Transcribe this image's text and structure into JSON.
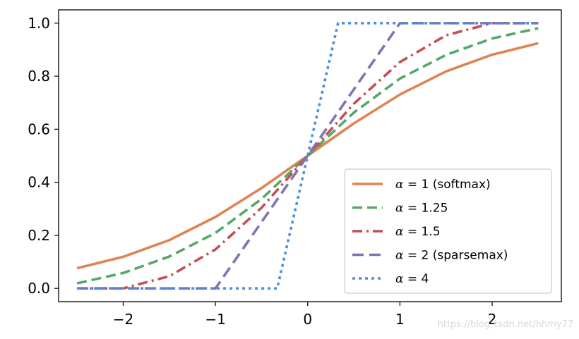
{
  "chart_data": {
    "type": "line",
    "title": "",
    "xlabel": "",
    "ylabel": "",
    "xlim": [
      -2.7,
      2.75
    ],
    "ylim": [
      -0.05,
      1.05
    ],
    "xticks": [
      -2,
      -1,
      0,
      1,
      2
    ],
    "xtick_labels": [
      "−2",
      "−1",
      "0",
      "1",
      "2"
    ],
    "yticks": [
      0.0,
      0.2,
      0.4,
      0.6,
      0.8,
      1.0
    ],
    "ytick_labels": [
      "0.0",
      "0.2",
      "0.4",
      "0.6",
      "0.8",
      "1.0"
    ],
    "grid": false,
    "legend_position": "lower-right",
    "x": [
      -2.5,
      -2.0,
      -1.5,
      -1.0,
      -0.5,
      0.0,
      0.5,
      1.0,
      1.5,
      2.0,
      2.5
    ],
    "series": [
      {
        "name": "α = 1 (softmax)",
        "alpha_label": "α",
        "rest_label": " = 1 (softmax)",
        "color": "#dd8452",
        "dash": "",
        "linecap": "butt",
        "values": [
          0.076,
          0.119,
          0.182,
          0.269,
          0.378,
          0.5,
          0.622,
          0.731,
          0.818,
          0.881,
          0.924
        ]
      },
      {
        "name": "α = 1.25",
        "alpha_label": "α",
        "rest_label": " = 1.25",
        "color": "#55a868",
        "dash": "14,7",
        "linecap": "butt",
        "values": [
          0.019,
          0.058,
          0.12,
          0.209,
          0.337,
          0.5,
          0.663,
          0.791,
          0.88,
          0.942,
          0.981
        ]
      },
      {
        "name": "α = 1.5",
        "alpha_label": "α",
        "rest_label": " = 1.5",
        "color": "#c44e52",
        "dash": "14,6,3,6",
        "linecap": "butt",
        "values": [
          0.0,
          0.0,
          0.046,
          0.147,
          0.304,
          0.5,
          0.696,
          0.853,
          0.954,
          1.0,
          1.0
        ]
      },
      {
        "name": "α = 2 (sparsemax)",
        "alpha_label": "α",
        "rest_label": " = 2 (sparsemax)",
        "color": "#8172b3",
        "dash": "16,8",
        "linecap": "butt",
        "values": [
          0.0,
          0.0,
          0.0,
          0.0,
          0.25,
          0.5,
          0.75,
          1.0,
          1.0,
          1.0,
          1.0
        ]
      },
      {
        "name": "α = 4",
        "alpha_label": "α",
        "rest_label": " = 4",
        "color": "#4c8fdf",
        "dash": "4,5",
        "linecap": "butt",
        "x": [
          -2.5,
          -0.33,
          0.33,
          2.5
        ],
        "values": [
          0.0,
          0.0,
          1.0,
          1.0
        ]
      }
    ]
  },
  "watermark": "https://blog.csdn.net/hhmy77"
}
